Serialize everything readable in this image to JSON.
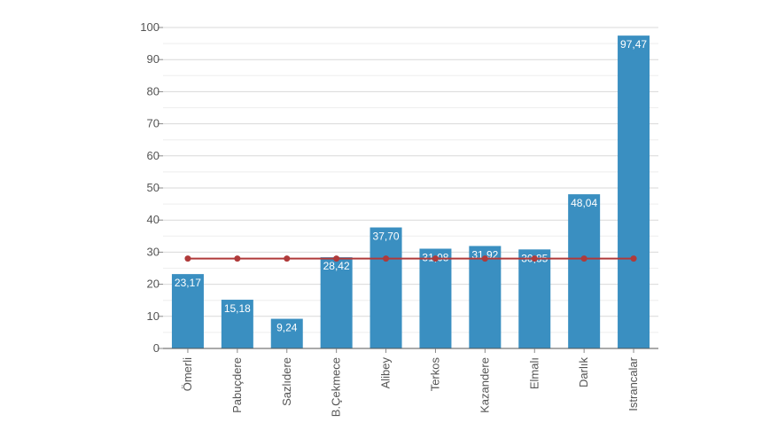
{
  "chart_data": {
    "type": "bar",
    "categories": [
      "Ömerli",
      "Pabuçdere",
      "Sazlıdere",
      "B.Çekmece",
      "Alibey",
      "Terkos",
      "Kazandere",
      "Elmalı",
      "Darlık",
      "Istrancalar"
    ],
    "series": [
      {
        "type": "bar",
        "values": [
          23.17,
          15.18,
          9.24,
          28.42,
          37.7,
          31.08,
          31.92,
          30.85,
          48.04,
          97.47
        ],
        "value_labels": [
          "23,17",
          "15,18",
          "9,24",
          "28,42",
          "37,70",
          "31,08",
          "31,92",
          "30,85",
          "48,04",
          "97,47"
        ],
        "color": "#3a8fc1"
      },
      {
        "type": "line",
        "values": [
          28,
          28,
          28,
          28,
          28,
          28,
          28,
          28,
          28,
          28
        ],
        "color": "#b03a3a"
      }
    ],
    "ylim": [
      0,
      100
    ],
    "yticks": [
      0,
      10,
      20,
      30,
      40,
      50,
      60,
      70,
      80,
      90,
      100
    ],
    "grid": true,
    "title": "",
    "xlabel": "",
    "ylabel": ""
  }
}
